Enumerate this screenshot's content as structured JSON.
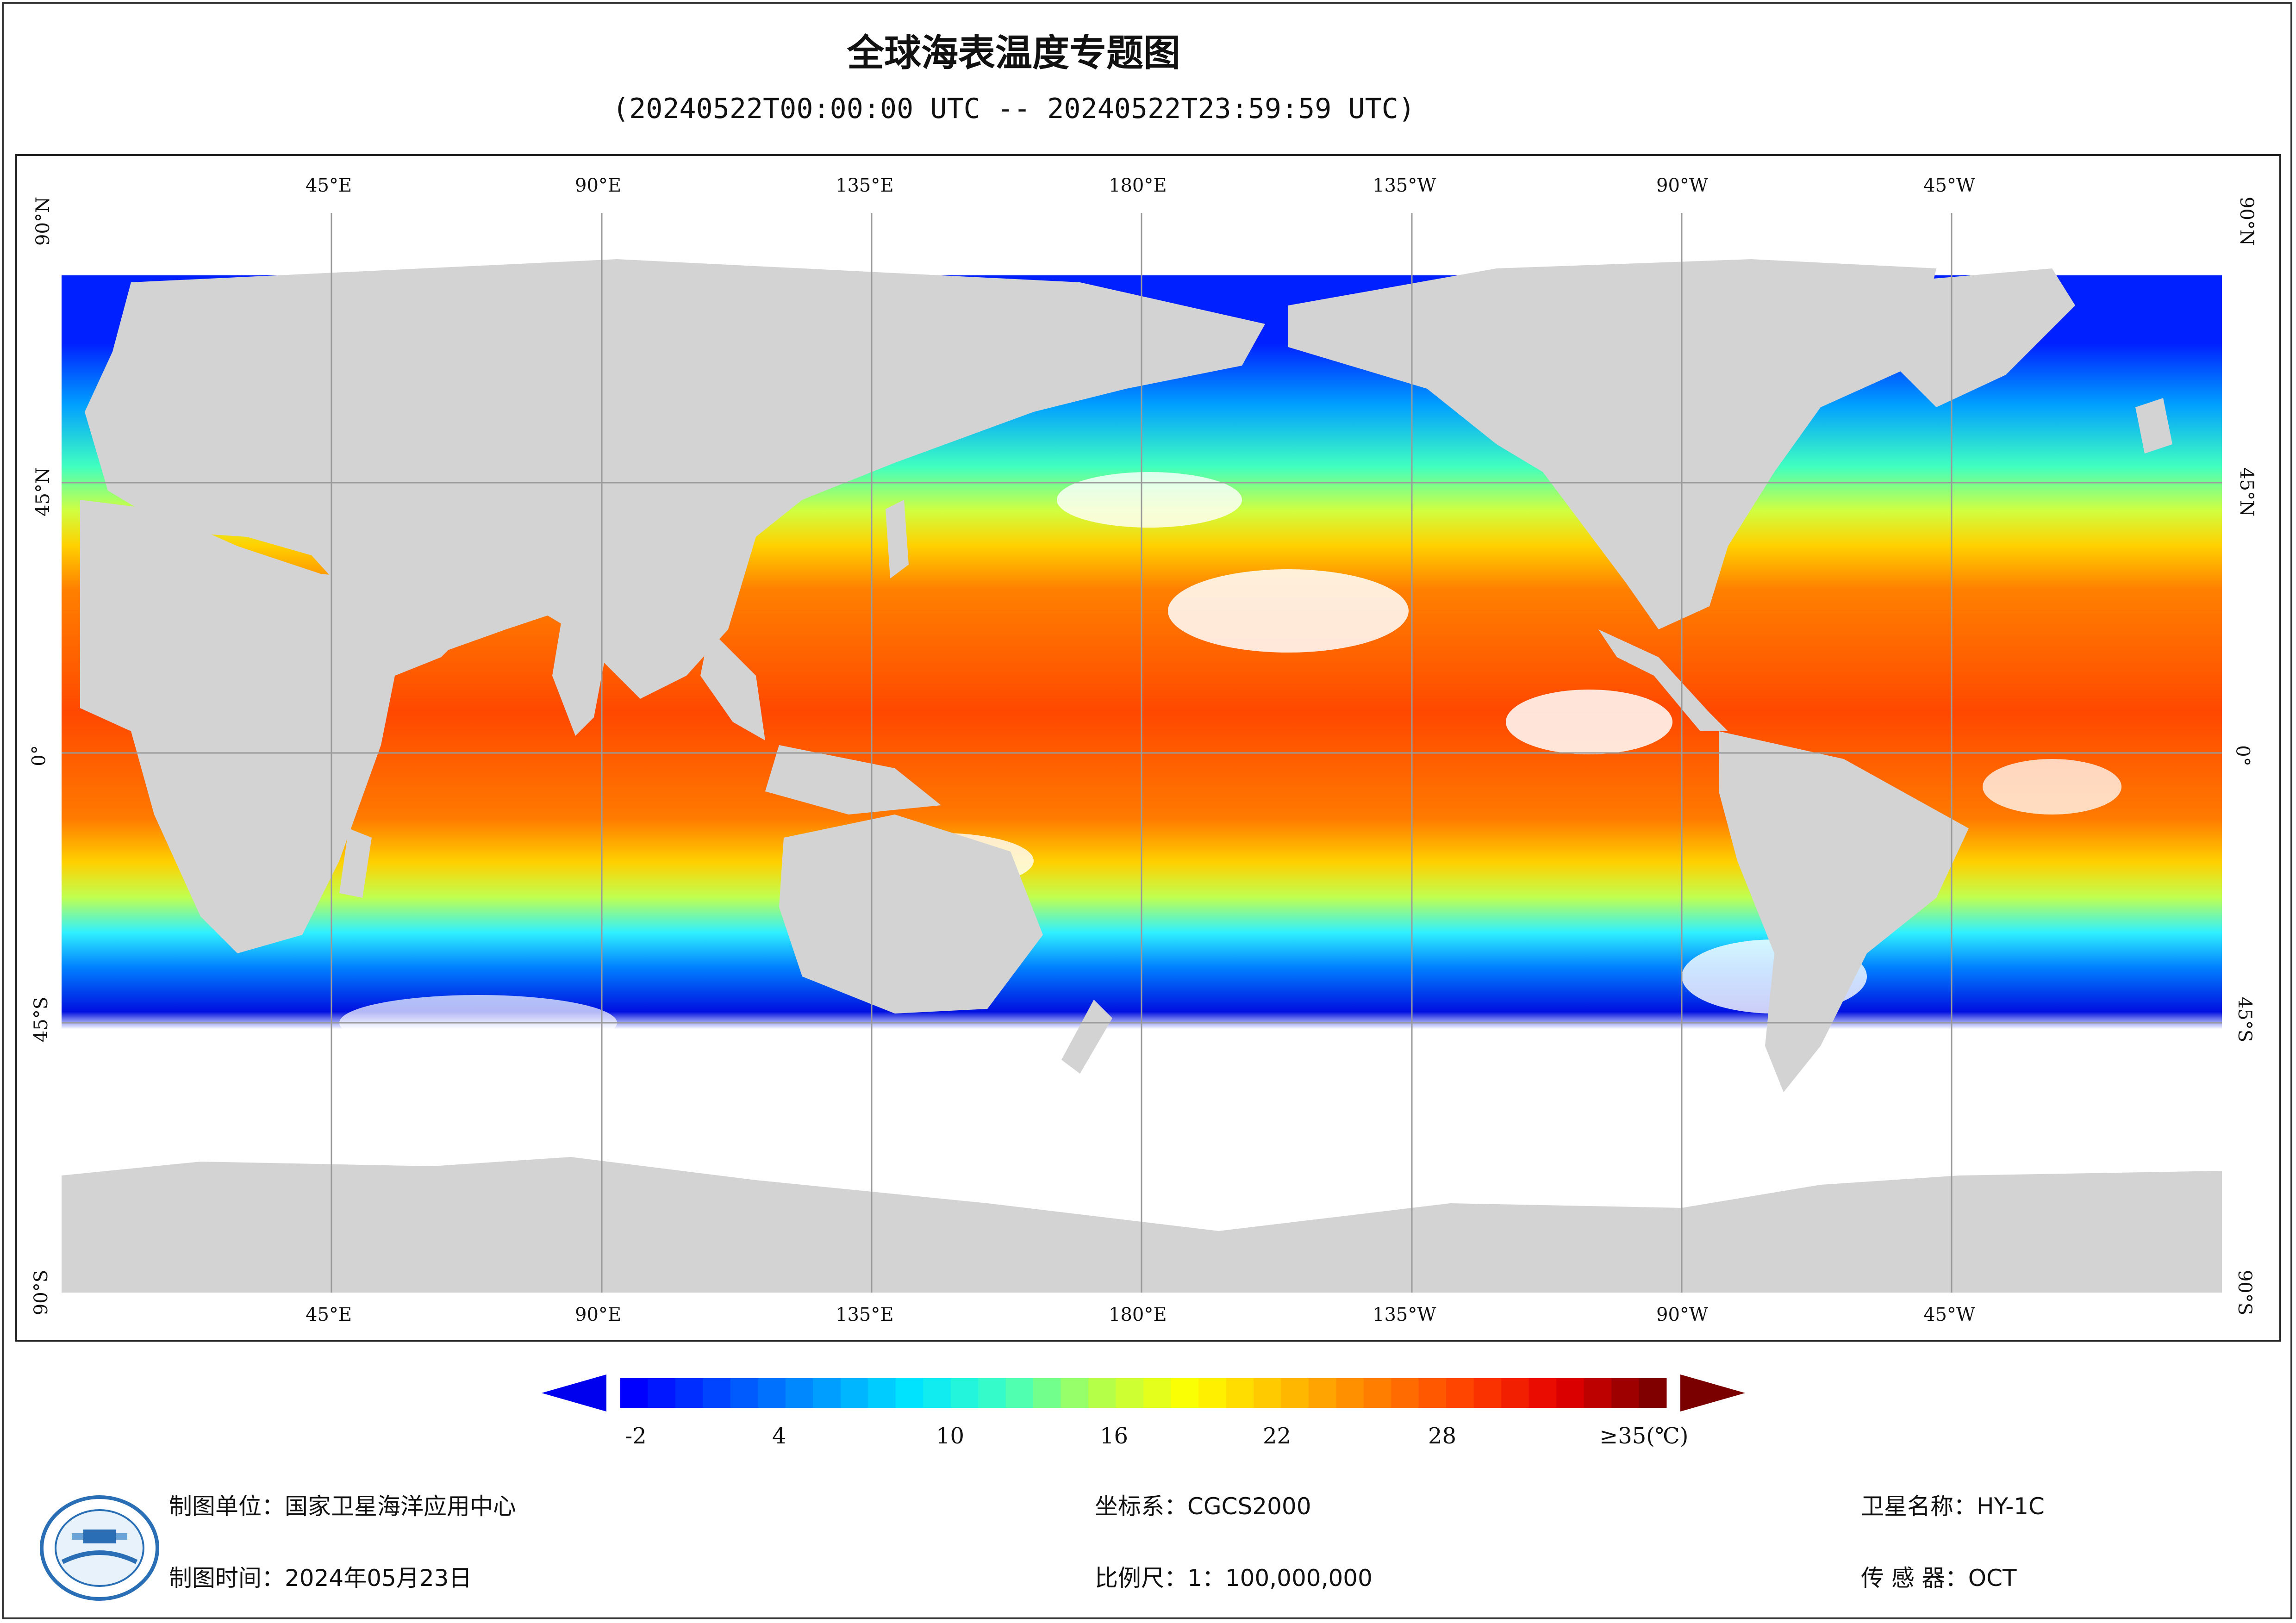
{
  "header": {
    "title": "全球海表温度专题图",
    "subtitle": "(20240522T00:00:00 UTC -- 20240522T23:59:59 UTC)"
  },
  "map": {
    "top_lon_labels": [
      "45°E",
      "90°E",
      "135°E",
      "180°E",
      "135°W",
      "90°W",
      "45°W"
    ],
    "bottom_lon_labels": [
      "45°E",
      "90°E",
      "135°E",
      "180°E",
      "135°W",
      "90°W",
      "45°W"
    ],
    "lat_labels": [
      "90°N",
      "45°N",
      "0°",
      "45°S",
      "90°S"
    ],
    "colors": {
      "land": "#d3d3d3",
      "no_data": "#ffffff",
      "grid": "#9a9a9a"
    }
  },
  "colorbar": {
    "ticks": [
      "-2",
      "4",
      "10",
      "16",
      "22",
      "28",
      "≥35(℃)"
    ],
    "range": [
      -3,
      35
    ],
    "colors": [
      "#0000ff",
      "#004cff",
      "#0099ff",
      "#00e5ff",
      "#3dffc2",
      "#b2ff4d",
      "#ffff00",
      "#ffc000",
      "#ff8000",
      "#ff4000",
      "#e60000",
      "#800000"
    ]
  },
  "footer": {
    "unit": "制图单位：国家卫星海洋应用中心",
    "date": "制图时间：2024年05月23日",
    "crs": "坐标系：CGCS2000",
    "scale": "比例尺：1：100,000,000",
    "satellite": "卫星名称：HY-1C",
    "sensor": "传 感 器：OCT"
  }
}
